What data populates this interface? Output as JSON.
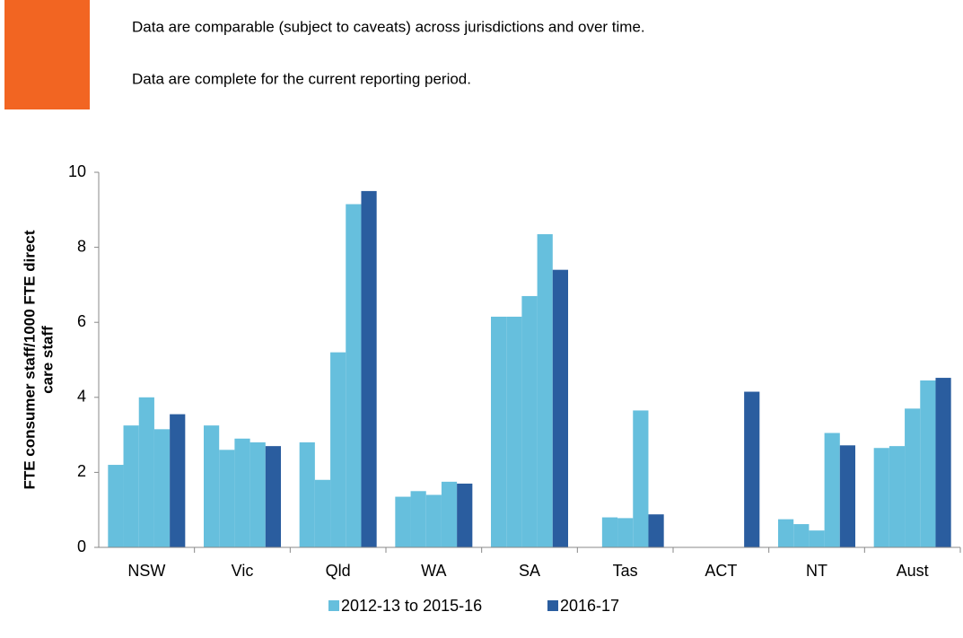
{
  "header": {
    "notes": [
      "Data are comparable (subject to caveats) across jurisdictions and over time.",
      "Data are complete for the current reporting period."
    ],
    "color": "#f26522"
  },
  "chart_data": {
    "type": "bar",
    "y_label": [
      "FTE consumer staff/1000  FTE direct",
      "care staff"
    ],
    "categories": [
      "NSW",
      "Vic",
      "Qld",
      "WA",
      "SA",
      "Tas",
      "ACT",
      "NT",
      "Aust"
    ],
    "series": [
      {
        "name": "2012-13 to 2015-16",
        "color": "#66bfdd",
        "values": [
          [
            2.2,
            3.25,
            4.0,
            3.15
          ],
          [
            3.25,
            2.6,
            2.9,
            2.8
          ],
          [
            2.8,
            1.8,
            5.2,
            9.15
          ],
          [
            1.35,
            1.5,
            1.4,
            1.75
          ],
          [
            6.15,
            6.15,
            6.7,
            8.35
          ],
          [
            null,
            0.8,
            0.78,
            3.65
          ],
          [
            null,
            null,
            null,
            null
          ],
          [
            0.75,
            0.62,
            0.45,
            3.05
          ],
          [
            2.65,
            2.7,
            3.7,
            4.45
          ]
        ]
      },
      {
        "name": "2016-17",
        "color": "#2a5d9f",
        "values": [
          3.55,
          2.7,
          9.5,
          1.7,
          7.4,
          0.88,
          4.15,
          2.72,
          4.52
        ]
      }
    ],
    "ylim": [
      0,
      10
    ],
    "yticks": [
      0,
      2,
      4,
      6,
      8,
      10
    ]
  }
}
